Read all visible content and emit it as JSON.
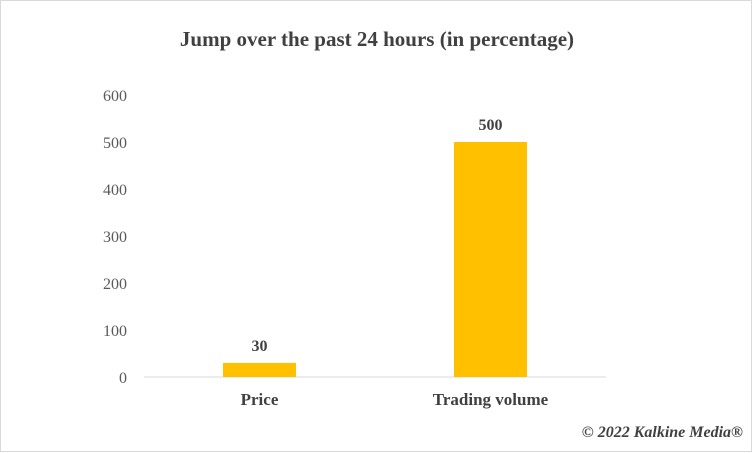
{
  "chart_data": {
    "type": "bar",
    "title": "Jump over the past 24 hours (in percentage)",
    "categories": [
      "Price",
      "Trading volume"
    ],
    "values": [
      30,
      500
    ],
    "data_labels": [
      "30",
      "500"
    ],
    "ylim": [
      0,
      600
    ],
    "yticks": [
      0,
      100,
      200,
      300,
      400,
      500,
      600
    ],
    "xlabel": "",
    "ylabel": "",
    "grid": false,
    "legend": "none",
    "bar_color": "#FFC000"
  },
  "copyright": "© 2022 Kalkine Media®"
}
